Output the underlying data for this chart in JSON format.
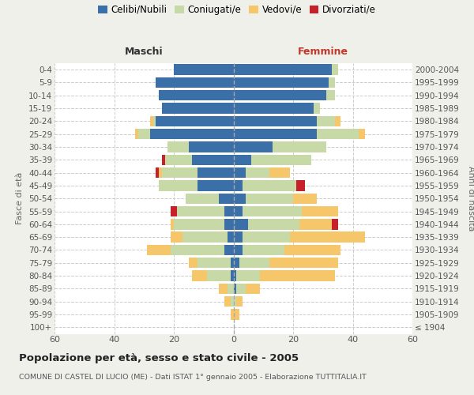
{
  "age_groups": [
    "100+",
    "95-99",
    "90-94",
    "85-89",
    "80-84",
    "75-79",
    "70-74",
    "65-69",
    "60-64",
    "55-59",
    "50-54",
    "45-49",
    "40-44",
    "35-39",
    "30-34",
    "25-29",
    "20-24",
    "15-19",
    "10-14",
    "5-9",
    "0-4"
  ],
  "birth_years": [
    "≤ 1904",
    "1905-1909",
    "1910-1914",
    "1915-1919",
    "1920-1924",
    "1925-1929",
    "1930-1934",
    "1935-1939",
    "1940-1944",
    "1945-1949",
    "1950-1954",
    "1955-1959",
    "1960-1964",
    "1965-1969",
    "1970-1974",
    "1975-1979",
    "1980-1984",
    "1985-1989",
    "1990-1994",
    "1995-1999",
    "2000-2004"
  ],
  "male": {
    "celibi": [
      0,
      0,
      0,
      0,
      1,
      1,
      3,
      2,
      3,
      3,
      5,
      12,
      12,
      14,
      15,
      28,
      26,
      24,
      25,
      26,
      20
    ],
    "coniugati": [
      0,
      0,
      1,
      2,
      8,
      11,
      18,
      15,
      17,
      16,
      11,
      13,
      12,
      9,
      7,
      4,
      1,
      0,
      0,
      0,
      0
    ],
    "vedovi": [
      0,
      1,
      2,
      3,
      5,
      3,
      8,
      4,
      1,
      0,
      0,
      0,
      1,
      0,
      0,
      1,
      1,
      0,
      0,
      0,
      0
    ],
    "divorziati": [
      0,
      0,
      0,
      0,
      0,
      0,
      0,
      0,
      0,
      2,
      0,
      0,
      1,
      1,
      0,
      0,
      0,
      0,
      0,
      0,
      0
    ]
  },
  "female": {
    "nubili": [
      0,
      0,
      0,
      1,
      1,
      2,
      3,
      3,
      5,
      3,
      4,
      3,
      4,
      6,
      13,
      28,
      28,
      27,
      31,
      32,
      33
    ],
    "coniugate": [
      0,
      0,
      1,
      3,
      8,
      10,
      14,
      16,
      17,
      20,
      16,
      18,
      8,
      20,
      18,
      14,
      6,
      2,
      3,
      2,
      2
    ],
    "vedove": [
      0,
      2,
      2,
      5,
      25,
      23,
      19,
      25,
      11,
      12,
      8,
      0,
      7,
      0,
      0,
      2,
      2,
      0,
      0,
      0,
      0
    ],
    "divorziate": [
      0,
      0,
      0,
      0,
      0,
      0,
      0,
      0,
      2,
      0,
      0,
      3,
      0,
      0,
      0,
      0,
      0,
      0,
      0,
      0,
      0
    ]
  },
  "colors": {
    "celibi_nubili": "#3a6fa8",
    "coniugati": "#c8d9a8",
    "vedovi": "#f5c76a",
    "divorziati": "#c8202a"
  },
  "xlim": 60,
  "title": "Popolazione per età, sesso e stato civile - 2005",
  "subtitle": "COMUNE DI CASTEL DI LUCIO (ME) - Dati ISTAT 1° gennaio 2005 - Elaborazione TUTTITALIA.IT",
  "ylabel_left": "Fasce di età",
  "ylabel_right": "Anni di nascita",
  "xlabel_left": "Maschi",
  "xlabel_right": "Femmine",
  "bg_color": "#f0f0eb",
  "plot_bg_color": "#ffffff"
}
